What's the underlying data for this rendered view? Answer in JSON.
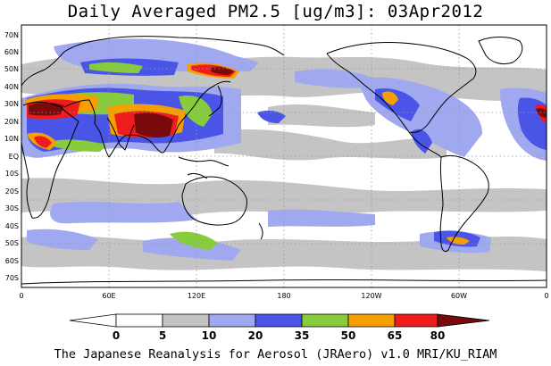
{
  "title": "Daily Averaged PM2.5 [ug/m3]: 03Apr2012",
  "footer": "The Japanese Reanalysis for Aerosol (JRAero) v1.0 MRI/KU_RIAM",
  "lat_labels": [
    "70N",
    "60N",
    "50N",
    "40N",
    "30N",
    "20N",
    "10N",
    "EQ",
    "10S",
    "20S",
    "30S",
    "40S",
    "50S",
    "60S",
    "70S"
  ],
  "lon_labels": [
    "0",
    "60E",
    "120E",
    "180",
    "120W",
    "60W",
    "0"
  ],
  "colorbar": {
    "ticks": [
      "0",
      "5",
      "10",
      "20",
      "35",
      "50",
      "65",
      "80"
    ],
    "colors": [
      "#ffffff",
      "#c4c4c4",
      "#a0a8f0",
      "#4a55e8",
      "#86cc3c",
      "#f5a000",
      "#ee1c1c",
      "#7a0a0a"
    ]
  }
}
